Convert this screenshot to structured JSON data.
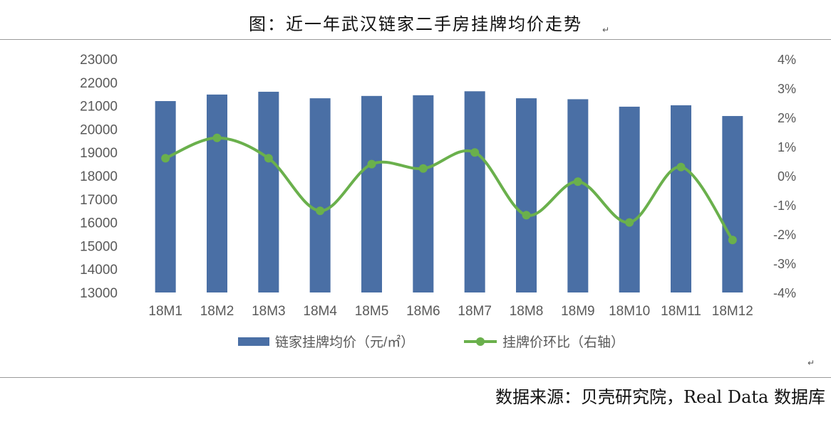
{
  "title": "图：近一年武汉链家二手房挂牌均价走势",
  "source": "数据来源：贝壳研究院，Real Data 数据库",
  "chart_data": {
    "type": "bar",
    "categories": [
      "18M1",
      "18M2",
      "18M3",
      "18M4",
      "18M5",
      "18M6",
      "18M7",
      "18M8",
      "18M9",
      "18M10",
      "18M11",
      "18M12"
    ],
    "series": [
      {
        "name": "链家挂牌均价（元/㎡）",
        "type": "bar",
        "axis": "left",
        "color": "#4a6fa5",
        "values": [
          21200,
          21480,
          21600,
          21320,
          21420,
          21450,
          21620,
          21320,
          21280,
          20960,
          21020,
          20560
        ]
      },
      {
        "name": "挂牌价环比（右轴）",
        "type": "line",
        "axis": "right",
        "color": "#6ab04c",
        "values": [
          0.6,
          1.3,
          0.6,
          -1.2,
          0.4,
          0.25,
          0.8,
          -1.35,
          -0.2,
          -1.6,
          0.3,
          -2.2
        ]
      }
    ],
    "y_left": {
      "ylim": [
        13000,
        23000
      ],
      "ticks": [
        "13000",
        "14000",
        "15000",
        "16000",
        "17000",
        "18000",
        "19000",
        "20000",
        "21000",
        "22000",
        "23000"
      ]
    },
    "y_right": {
      "ylim": [
        -4,
        4
      ],
      "ticks": [
        "-4%",
        "-3%",
        "-2%",
        "-1%",
        "0%",
        "1%",
        "2%",
        "3%",
        "4%"
      ]
    },
    "grid": false,
    "legend_position": "bottom"
  }
}
